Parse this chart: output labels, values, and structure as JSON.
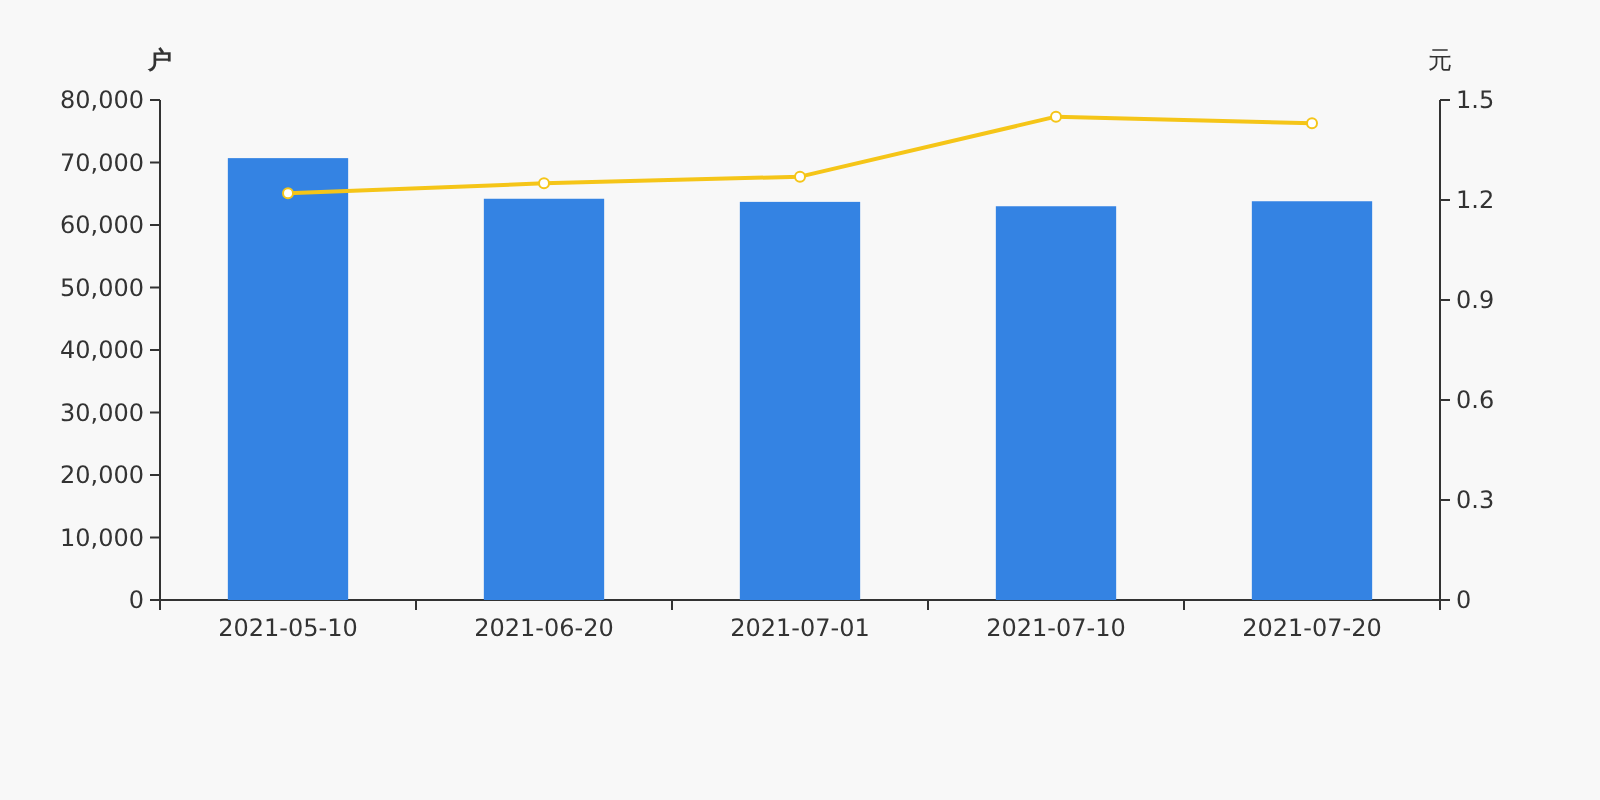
{
  "chart_data": {
    "type": "bar",
    "ylabel": "户",
    "y2label": "元",
    "categories": [
      "2021-05-10",
      "2021-06-20",
      "2021-07-01",
      "2021-07-10",
      "2021-07-20"
    ],
    "series": [
      {
        "color": "#3483e3",
        "values": [
          70700,
          64200,
          63700,
          63000,
          63800
        ]
      },
      {
        "type": "line",
        "color": "#f5c518",
        "axis": "y2",
        "marker": "circle",
        "values": [
          1.22,
          1.25,
          1.27,
          1.45,
          1.43
        ]
      }
    ],
    "ylim": [
      0,
      80000
    ],
    "yticks": [
      0,
      {
        "value": 10000,
        "label": "10,000"
      },
      {
        "value": 20000,
        "label": "20,000"
      },
      {
        "value": 30000,
        "label": "30,000"
      },
      {
        "value": 40000,
        "label": "40,000"
      },
      {
        "value": 50000,
        "label": "50,000"
      },
      {
        "value": 60000,
        "label": "60,000"
      },
      {
        "value": 70000,
        "label": "70,000"
      },
      {
        "value": 80000,
        "label": "80,000"
      }
    ],
    "y2lim": [
      0,
      1.5
    ],
    "y2ticks": [
      0,
      0.3,
      0.6,
      0.9,
      1.2,
      1.5
    ]
  }
}
